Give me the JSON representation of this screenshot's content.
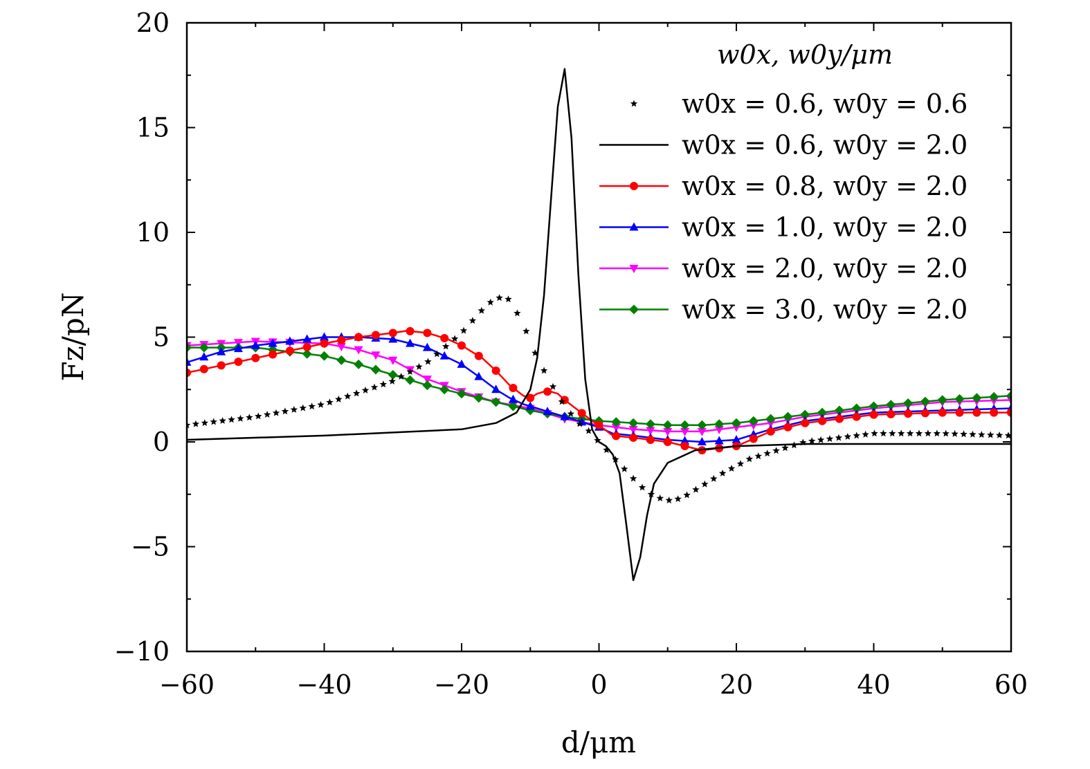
{
  "chart_data": {
    "type": "line",
    "xlabel": "d/μm",
    "ylabel": "Fz/pN",
    "xlim": [
      -60,
      60
    ],
    "ylim": [
      -10,
      20
    ],
    "x_ticks": [
      -60,
      -40,
      -20,
      0,
      20,
      40,
      60
    ],
    "x_tick_labels": [
      "−60",
      "−40",
      "−20",
      "0",
      "20",
      "40",
      "60"
    ],
    "y_ticks": [
      -10,
      -5,
      0,
      5,
      10,
      15,
      20
    ],
    "y_tick_labels": [
      "−10",
      "−5",
      "0",
      "5",
      "10",
      "15",
      "20"
    ],
    "grid": false,
    "legend_title": "w0x, w0y/μm",
    "legend_position": "top-right",
    "series": [
      {
        "name": "w0x = 0.6, w0y = 0.6",
        "color": "#000000",
        "marker": "star",
        "line": false,
        "x": [
          -60,
          -50,
          -40,
          -30,
          -25,
          -20,
          -17,
          -15,
          -13,
          -11,
          -9,
          -7,
          -5,
          -3,
          -2,
          0,
          2,
          4,
          6,
          8,
          10,
          12,
          14,
          18,
          22,
          30,
          40,
          50,
          60
        ],
        "y": [
          0.8,
          1.2,
          1.8,
          2.9,
          3.8,
          5.2,
          6.3,
          6.9,
          6.8,
          5.6,
          4.0,
          2.8,
          1.7,
          0.9,
          0.7,
          0.0,
          -0.7,
          -1.4,
          -2.1,
          -2.6,
          -2.8,
          -2.7,
          -2.3,
          -1.5,
          -0.8,
          0.0,
          0.4,
          0.4,
          0.3
        ]
      },
      {
        "name": "w0x = 0.6, w0y = 2.0",
        "color": "#000000",
        "marker": "none",
        "line": true,
        "x": [
          -60,
          -40,
          -20,
          -15,
          -12,
          -10,
          -9,
          -8,
          -7,
          -6,
          -5,
          -4,
          -3,
          -2,
          -1,
          0,
          1,
          2,
          3,
          4,
          5,
          6,
          7,
          8,
          10,
          14,
          20,
          30,
          60
        ],
        "y": [
          0.1,
          0.3,
          0.6,
          0.9,
          1.4,
          2.5,
          4.0,
          7.0,
          11.5,
          16.0,
          17.8,
          14.5,
          8.0,
          3.0,
          0.6,
          0.0,
          -0.2,
          -0.6,
          -1.5,
          -4.0,
          -6.6,
          -5.5,
          -3.5,
          -2.0,
          -1.0,
          -0.4,
          -0.2,
          -0.1,
          -0.1
        ]
      },
      {
        "name": "w0x = 0.8, w0y = 2.0",
        "color": "#ff0000",
        "marker": "circle",
        "line": true,
        "x": [
          -60,
          -50,
          -40,
          -35,
          -30,
          -28,
          -25,
          -22,
          -20,
          -17,
          -15,
          -13,
          -11,
          -10,
          -9,
          -8,
          -7,
          -6,
          -5,
          -3,
          -1,
          0,
          2,
          5,
          10,
          15,
          20,
          25,
          30,
          40,
          50,
          60
        ],
        "y": [
          3.3,
          4.0,
          4.7,
          5.0,
          5.2,
          5.3,
          5.2,
          4.9,
          4.6,
          4.0,
          3.4,
          2.7,
          2.2,
          2.1,
          2.3,
          2.4,
          2.4,
          2.3,
          2.0,
          1.5,
          1.0,
          0.8,
          0.3,
          0.2,
          0.0,
          -0.4,
          -0.2,
          0.5,
          0.9,
          1.3,
          1.4,
          1.4
        ]
      },
      {
        "name": "w0x = 1.0, w0y = 2.0",
        "color": "#0000ff",
        "marker": "triangle-up",
        "line": true,
        "x": [
          -60,
          -55,
          -50,
          -45,
          -40,
          -35,
          -30,
          -25,
          -20,
          -17,
          -15,
          -13,
          -11,
          -9,
          -7,
          -5,
          -3,
          -1,
          0,
          2,
          5,
          10,
          15,
          20,
          25,
          30,
          40,
          50,
          60
        ],
        "y": [
          3.8,
          4.3,
          4.6,
          4.8,
          5.0,
          5.0,
          4.9,
          4.5,
          3.7,
          3.0,
          2.5,
          2.1,
          1.8,
          1.6,
          1.4,
          1.2,
          1.0,
          0.8,
          0.7,
          0.4,
          0.3,
          0.1,
          0.0,
          0.1,
          0.6,
          1.0,
          1.4,
          1.5,
          1.6
        ]
      },
      {
        "name": "w0x = 2.0, w0y = 2.0",
        "color": "#ff00ff",
        "marker": "triangle-down",
        "line": true,
        "x": [
          -60,
          -50,
          -40,
          -35,
          -30,
          -25,
          -20,
          -15,
          -10,
          -5,
          0,
          5,
          10,
          15,
          20,
          25,
          30,
          40,
          50,
          60
        ],
        "y": [
          4.6,
          4.8,
          4.7,
          4.4,
          3.9,
          3.0,
          2.4,
          1.9,
          1.6,
          1.1,
          0.8,
          0.6,
          0.5,
          0.5,
          0.7,
          0.9,
          1.2,
          1.6,
          1.9,
          2.0
        ]
      },
      {
        "name": "w0x = 3.0, w0y = 2.0",
        "color": "#008000",
        "marker": "diamond",
        "line": true,
        "x": [
          -60,
          -50,
          -45,
          -40,
          -35,
          -30,
          -25,
          -20,
          -15,
          -10,
          -5,
          0,
          5,
          10,
          15,
          20,
          25,
          30,
          40,
          50,
          60
        ],
        "y": [
          4.5,
          4.5,
          4.3,
          4.1,
          3.7,
          3.2,
          2.7,
          2.3,
          1.9,
          1.5,
          1.2,
          1.0,
          0.9,
          0.8,
          0.8,
          0.9,
          1.1,
          1.3,
          1.7,
          2.0,
          2.2
        ]
      }
    ]
  }
}
